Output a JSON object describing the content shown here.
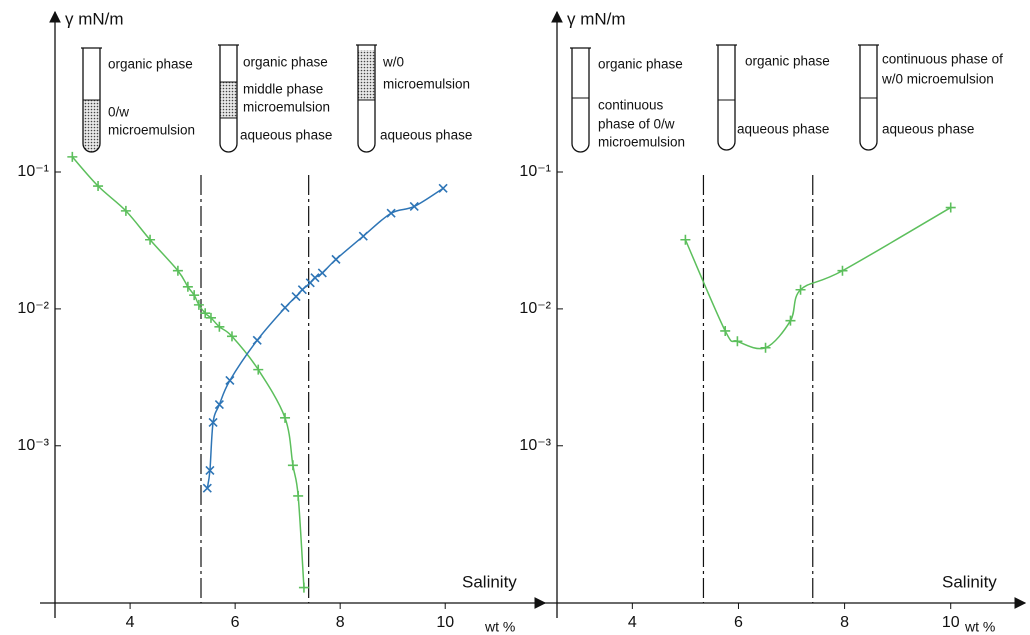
{
  "chart_data": [
    {
      "type": "line",
      "log_y": true,
      "ylabel": "γ mN/m",
      "xlabel": "Salinity",
      "xunit": "wt %",
      "xlim": [
        2.57,
        11.9
      ],
      "xticks": [
        4,
        6,
        8,
        10
      ],
      "ylim": [
        7.1e-05,
        1.29
      ],
      "yticks": [
        {
          "value": 0.1,
          "label": "10⁻¹"
        },
        {
          "value": 0.01,
          "label": "10⁻²"
        },
        {
          "value": 0.001,
          "label": "10⁻³"
        }
      ],
      "vlines": [
        5.35,
        7.4
      ],
      "annotations": [
        "organic phase",
        "0/w",
        "microemulsion",
        "organic phase",
        "middle phase",
        "microemulsion",
        "aqueous phase",
        "w/0",
        "microemulsion",
        "aqueous phase"
      ],
      "series": [
        {
          "color": "#5cbf5c",
          "marker": "+",
          "x": [
            2.9,
            3.39,
            3.92,
            4.38,
            4.91,
            5.1,
            5.22,
            5.31,
            5.43,
            5.54,
            5.7,
            5.94,
            6.44,
            6.95,
            7.1,
            7.2,
            7.31
          ],
          "values": [
            0.129,
            0.079,
            0.052,
            0.032,
            0.019,
            0.0145,
            0.0126,
            0.0107,
            0.0093,
            0.0086,
            0.0074,
            0.0063,
            0.0036,
            0.0016,
            0.00072,
            0.00043,
            9.2e-05
          ]
        },
        {
          "color": "#2e75b6",
          "marker": "x",
          "x": [
            5.47,
            5.52,
            5.58,
            5.7,
            5.9,
            6.42,
            6.95,
            7.16,
            7.28,
            7.43,
            7.52,
            7.66,
            7.92,
            8.44,
            8.97,
            9.41,
            9.96
          ],
          "values": [
            0.00049,
            0.00066,
            0.00148,
            0.002,
            0.003,
            0.0059,
            0.0102,
            0.0123,
            0.0138,
            0.0155,
            0.0169,
            0.0183,
            0.023,
            0.034,
            0.05,
            0.056,
            0.076
          ]
        }
      ]
    },
    {
      "type": "line",
      "log_y": true,
      "ylabel": "γ mN/m",
      "xlabel": "Salinity",
      "xunit": "wt %",
      "xlim": [
        2.58,
        11.4
      ],
      "xticks": [
        4,
        6,
        8,
        10
      ],
      "ylim": [
        7.1e-05,
        1.29
      ],
      "yticks": [
        {
          "value": 0.1,
          "label": "10⁻¹"
        },
        {
          "value": 0.01,
          "label": "10⁻²"
        },
        {
          "value": 0.001,
          "label": "10⁻³"
        }
      ],
      "vlines": [
        5.34,
        7.4
      ],
      "annotations": [
        "organic phase",
        "continuous",
        "phase of 0/w",
        "microemulsion",
        "organic phase",
        "aqueous phase",
        "continuous phase of",
        "w/0 microemulsion",
        "aqueous phase"
      ],
      "series": [
        {
          "color": "#5cbf5c",
          "marker": "+",
          "x": [
            5.0,
            5.75,
            5.98,
            6.51,
            6.98,
            7.17,
            7.96,
            10.0
          ],
          "values": [
            0.032,
            0.0069,
            0.0058,
            0.0052,
            0.0082,
            0.0138,
            0.019,
            0.055
          ]
        }
      ]
    }
  ]
}
